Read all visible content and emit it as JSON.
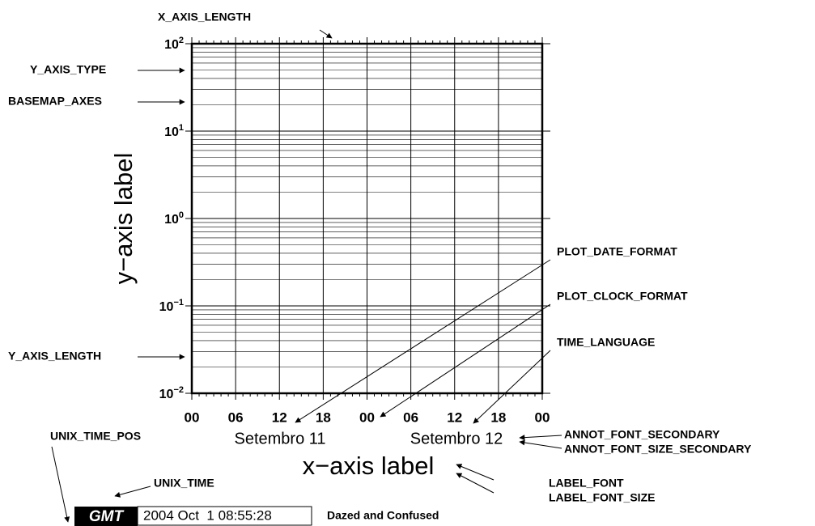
{
  "header": {
    "x_axis_length": "X_AXIS_LENGTH"
  },
  "left_annotations": [
    "Y_AXIS_TYPE",
    "BASEMAP_AXES",
    "Y_AXIS_LENGTH"
  ],
  "right_annotations": [
    "PLOT_DATE_FORMAT",
    "PLOT_CLOCK_FORMAT",
    "TIME_LANGUAGE",
    "ANNOT_FONT_SECONDARY",
    "ANNOT_FONT_SIZE_SECONDARY",
    "LABEL_FONT",
    "LABEL_FONT_SIZE"
  ],
  "bottom_annotations": [
    "UNIX_TIME_POS",
    "UNIX_TIME"
  ],
  "y_tick_labels": [
    {
      "base": "10",
      "exp": "2"
    },
    {
      "base": "10",
      "exp": "1"
    },
    {
      "base": "10",
      "exp": "0"
    },
    {
      "base": "10",
      "exp": "−1"
    },
    {
      "base": "10",
      "exp": "−2"
    }
  ],
  "x_tick_labels": [
    "00",
    "06",
    "12",
    "18",
    "00",
    "06",
    "12",
    "18",
    "00"
  ],
  "secondary_labels": [
    "Setembro 11",
    "Setembro 12"
  ],
  "x_axis_label": "x−axis label",
  "y_axis_label": "y−axis label",
  "timestamp": {
    "logo": "GMT",
    "time": "2004 Oct  1 08:55:28",
    "title": "Dazed and Confused"
  }
}
